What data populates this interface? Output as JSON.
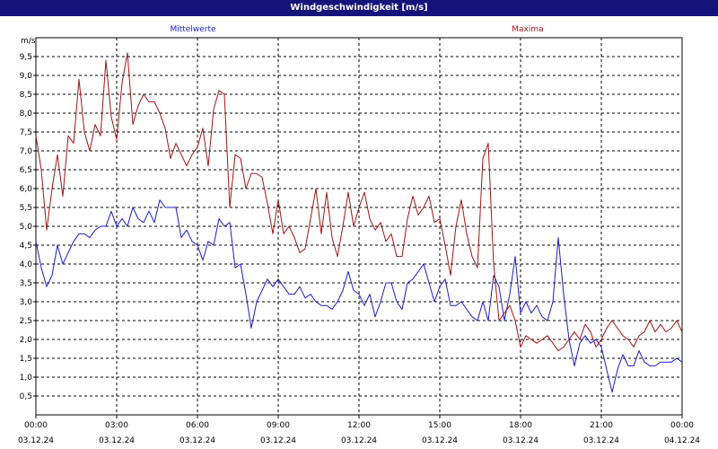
{
  "window": {
    "title": "Windgeschwindigkeit [m/s]"
  },
  "colors": {
    "titlebar": "#14147a",
    "mean": "#1c1cc8",
    "max": "#a01414",
    "grid": "#000000"
  },
  "chart_data": {
    "type": "line",
    "title": "Windgeschwindigkeit [m/s]",
    "ylabel": "m/s",
    "ylim": [
      0,
      10
    ],
    "yticks": [
      "0,5",
      "1,0",
      "1,5",
      "2,0",
      "2,5",
      "3,0",
      "3,5",
      "4,0",
      "4,5",
      "5,0",
      "5,5",
      "6,0",
      "6,5",
      "7,0",
      "7,5",
      "8,0",
      "8,5",
      "9,0",
      "9,5"
    ],
    "xlim": [
      0,
      24
    ],
    "xticks": [
      {
        "time": "00:00",
        "date": "03.12.24"
      },
      {
        "time": "03:00",
        "date": "03.12.24"
      },
      {
        "time": "06:00",
        "date": "03.12.24"
      },
      {
        "time": "09:00",
        "date": "03.12.24"
      },
      {
        "time": "12:00",
        "date": "03.12.24"
      },
      {
        "time": "15:00",
        "date": "03.12.24"
      },
      {
        "time": "18:00",
        "date": "03.12.24"
      },
      {
        "time": "21:00",
        "date": "03.12.24"
      },
      {
        "time": "00:00",
        "date": "04.12.24"
      }
    ],
    "grid": true,
    "legend_placement": "top",
    "series": [
      {
        "name": "Mittelwerte",
        "color": "#1c1cc8",
        "hours": [
          0,
          0.2,
          0.4,
          0.6,
          0.8,
          1.0,
          1.2,
          1.4,
          1.6,
          1.8,
          2.0,
          2.2,
          2.4,
          2.6,
          2.8,
          3.0,
          3.2,
          3.4,
          3.6,
          3.8,
          4.0,
          4.2,
          4.4,
          4.6,
          4.8,
          5.0,
          5.2,
          5.4,
          5.6,
          5.8,
          6.0,
          6.2,
          6.4,
          6.6,
          6.8,
          7.0,
          7.2,
          7.4,
          7.6,
          7.8,
          8.0,
          8.2,
          8.4,
          8.6,
          8.8,
          9.0,
          9.2,
          9.4,
          9.6,
          9.8,
          10.0,
          10.2,
          10.4,
          10.6,
          10.8,
          11.0,
          11.2,
          11.4,
          11.6,
          11.8,
          12.0,
          12.2,
          12.4,
          12.6,
          12.8,
          13.0,
          13.2,
          13.4,
          13.6,
          13.8,
          14.0,
          14.2,
          14.4,
          14.6,
          14.8,
          15.0,
          15.2,
          15.4,
          15.6,
          15.8,
          16.0,
          16.2,
          16.4,
          16.6,
          16.8,
          17.0,
          17.2,
          17.4,
          17.6,
          17.8,
          18.0,
          18.2,
          18.4,
          18.6,
          18.8,
          19.0,
          19.2,
          19.4,
          19.6,
          19.8,
          20.0,
          20.2,
          20.4,
          20.6,
          20.8,
          21.0,
          21.2,
          21.4,
          21.6,
          21.8,
          22.0,
          22.2,
          22.4,
          22.6,
          22.8,
          23.0,
          23.2,
          23.4,
          23.6,
          23.8,
          24.0
        ],
        "values": [
          4.6,
          3.9,
          3.4,
          3.7,
          4.5,
          4.0,
          4.3,
          4.6,
          4.8,
          4.8,
          4.7,
          4.9,
          5.0,
          5.0,
          5.4,
          5.0,
          5.2,
          5.0,
          5.5,
          5.2,
          5.1,
          5.4,
          5.1,
          5.7,
          5.5,
          5.5,
          5.5,
          4.7,
          4.9,
          4.6,
          4.5,
          4.1,
          4.6,
          4.5,
          5.2,
          5.0,
          5.1,
          3.9,
          4.0,
          3.2,
          2.3,
          3.0,
          3.3,
          3.6,
          3.4,
          3.6,
          3.4,
          3.2,
          3.2,
          3.4,
          3.1,
          3.2,
          3.0,
          2.9,
          2.9,
          2.8,
          3.0,
          3.3,
          3.8,
          3.3,
          3.2,
          2.9,
          3.2,
          2.6,
          3.0,
          3.5,
          3.5,
          3.0,
          2.8,
          3.5,
          3.6,
          3.8,
          4.0,
          3.5,
          3.0,
          3.4,
          3.6,
          2.9,
          2.9,
          3.0,
          2.8,
          2.6,
          2.5,
          3.0,
          2.5,
          3.7,
          3.4,
          2.5,
          3.2,
          4.2,
          2.7,
          3.0,
          2.7,
          2.9,
          2.6,
          2.5,
          3.0,
          4.7,
          3.2,
          2.0,
          1.3,
          1.9,
          2.1,
          1.9,
          2.0,
          1.8,
          1.2,
          0.6,
          1.2,
          1.6,
          1.3,
          1.3,
          1.7,
          1.4,
          1.3,
          1.3,
          1.4,
          1.4,
          1.4,
          1.5,
          1.4
        ],
        "values_note": "approximate readings"
      },
      {
        "name": "Maxima",
        "color": "#a01414",
        "hours": [
          0,
          0.2,
          0.4,
          0.6,
          0.8,
          1.0,
          1.2,
          1.4,
          1.6,
          1.8,
          2.0,
          2.2,
          2.4,
          2.6,
          2.8,
          3.0,
          3.2,
          3.4,
          3.6,
          3.8,
          4.0,
          4.2,
          4.4,
          4.6,
          4.8,
          5.0,
          5.2,
          5.4,
          5.6,
          5.8,
          6.0,
          6.2,
          6.4,
          6.6,
          6.8,
          7.0,
          7.2,
          7.4,
          7.6,
          7.8,
          8.0,
          8.2,
          8.4,
          8.6,
          8.8,
          9.0,
          9.2,
          9.4,
          9.6,
          9.8,
          10.0,
          10.2,
          10.4,
          10.6,
          10.8,
          11.0,
          11.2,
          11.4,
          11.6,
          11.8,
          12.0,
          12.2,
          12.4,
          12.6,
          12.8,
          13.0,
          13.2,
          13.4,
          13.6,
          13.8,
          14.0,
          14.2,
          14.4,
          14.6,
          14.8,
          15.0,
          15.2,
          15.4,
          15.6,
          15.8,
          16.0,
          16.2,
          16.4,
          16.6,
          16.8,
          17.0,
          17.2,
          17.4,
          17.6,
          17.8,
          18.0,
          18.2,
          18.4,
          18.6,
          18.8,
          19.0,
          19.2,
          19.4,
          19.6,
          19.8,
          20.0,
          20.2,
          20.4,
          20.6,
          20.8,
          21.0,
          21.2,
          21.4,
          21.6,
          21.8,
          22.0,
          22.2,
          22.4,
          22.6,
          22.8,
          23.0,
          23.2,
          23.4,
          23.6,
          23.8,
          24.0
        ],
        "values": [
          7.4,
          6.5,
          4.9,
          6.0,
          6.9,
          5.8,
          7.4,
          7.2,
          8.9,
          7.5,
          7.0,
          7.7,
          7.4,
          9.4,
          7.9,
          7.3,
          8.8,
          9.6,
          7.7,
          8.2,
          8.5,
          8.3,
          8.3,
          8.0,
          7.6,
          6.8,
          7.2,
          6.9,
          6.6,
          6.9,
          7.1,
          7.6,
          6.6,
          8.1,
          8.6,
          8.5,
          5.5,
          6.9,
          6.8,
          6.0,
          6.4,
          6.4,
          6.3,
          5.6,
          4.8,
          5.7,
          4.8,
          5.0,
          4.7,
          4.3,
          4.4,
          5.2,
          6.0,
          4.8,
          5.9,
          4.7,
          4.2,
          5.0,
          5.9,
          5.0,
          5.5,
          5.9,
          5.2,
          4.9,
          5.1,
          4.6,
          4.8,
          4.2,
          4.2,
          5.2,
          5.8,
          5.3,
          5.5,
          5.8,
          5.1,
          5.2,
          4.5,
          3.7,
          5.0,
          5.7,
          4.8,
          4.2,
          3.9,
          6.8,
          7.2,
          4.0,
          2.5,
          2.7,
          2.9,
          2.5,
          1.8,
          2.1,
          2.0,
          1.9,
          2.0,
          2.1,
          1.9,
          1.7,
          1.8,
          2.0,
          2.2,
          2.0,
          2.4,
          2.2,
          1.8,
          2.0,
          2.3,
          2.5,
          2.3,
          2.1,
          2.0,
          1.8,
          2.1,
          2.2,
          2.5,
          2.2,
          2.4,
          2.2,
          2.3,
          2.5,
          2.2
        ],
        "values_note": "approximate readings"
      }
    ]
  }
}
